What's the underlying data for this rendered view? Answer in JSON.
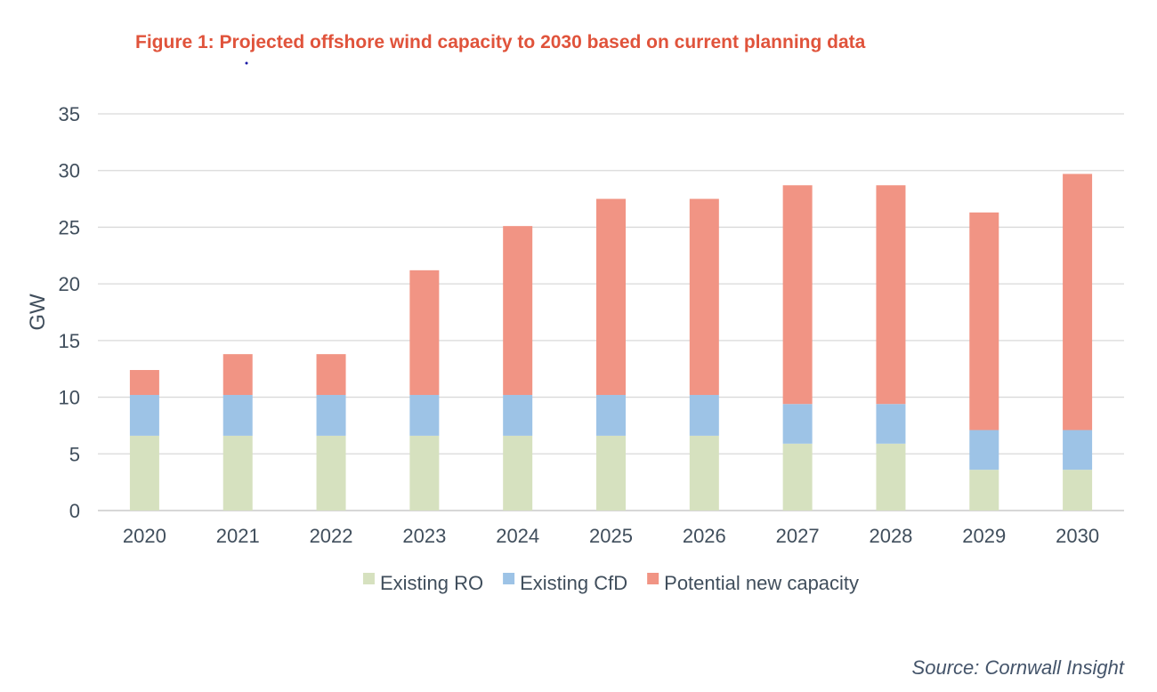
{
  "figure": {
    "title": "Figure 1: Projected offshore wind capacity to 2030 based on current planning data",
    "source": "Source: Cornwall Insight"
  },
  "colors": {
    "title": "#e0533b",
    "existing_ro": "#d6e1bf",
    "existing_cfd": "#9dc3e6",
    "potential_new": "#f19484",
    "axis_text": "#404e5c",
    "gridline": "#d9d9d9"
  },
  "chart_data": {
    "type": "bar",
    "stacked": true,
    "title": "Figure 1: Projected offshore wind capacity to 2030 based on current planning data",
    "xlabel": "",
    "ylabel": "GW",
    "ylim": [
      0,
      35
    ],
    "yticks": [
      0,
      5,
      10,
      15,
      20,
      25,
      30,
      35
    ],
    "grid": true,
    "legend_position": "bottom",
    "categories": [
      "2020",
      "2021",
      "2022",
      "2023",
      "2024",
      "2025",
      "2026",
      "2027",
      "2028",
      "2029",
      "2030"
    ],
    "series": [
      {
        "name": "Existing RO",
        "color": "#d6e1bf",
        "values": [
          6.6,
          6.6,
          6.6,
          6.6,
          6.6,
          6.6,
          6.6,
          5.9,
          5.9,
          3.6,
          3.6
        ]
      },
      {
        "name": "Existing CfD",
        "color": "#9dc3e6",
        "values": [
          3.6,
          3.6,
          3.6,
          3.6,
          3.6,
          3.6,
          3.6,
          3.5,
          3.5,
          3.5,
          3.5
        ]
      },
      {
        "name": "Potential new capacity",
        "color": "#f19484",
        "values": [
          2.2,
          3.6,
          3.6,
          11.0,
          14.9,
          17.3,
          17.3,
          19.3,
          19.3,
          19.2,
          22.6
        ]
      }
    ]
  }
}
